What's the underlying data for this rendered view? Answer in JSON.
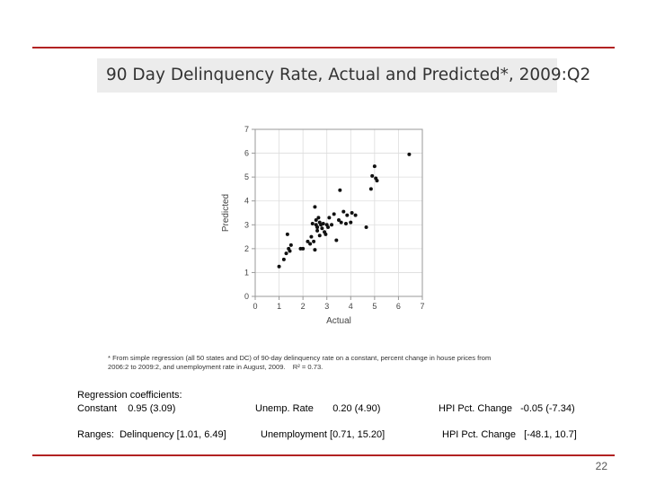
{
  "slide": {
    "title": "90 Day Delinquency Rate, Actual and Predicted*, 2009:Q2",
    "footnote_line1": "* From simple regression (all 50 states and DC) of 90-day delinquency rate on a constant, percent change in house prices from",
    "footnote_line2": "2006:2 to 2009:2, and unemployment rate in August, 2009.",
    "footnote_r2": "R² = 0.73.",
    "coef_heading": "Regression coefficients:",
    "coef_constant": "Constant    0.95 (3.09)",
    "coef_unemp": "Unemp. Rate       0.20 (4.90)",
    "coef_hpi": "HPI Pct. Change   -0.05 (-7.34)",
    "ranges_delinquency": "Ranges:  Delinquency [1.01, 6.49]",
    "ranges_unemp": "Unemployment [0.71, 15.20]",
    "ranges_hpi": "HPI Pct. Change   [-48.1, 10.7]",
    "page_number": "22"
  },
  "colors": {
    "rule": "#b22222",
    "title_bg": "#ececec",
    "grid": "#dddddd",
    "point": "#111111"
  },
  "chart_data": {
    "type": "scatter",
    "xlabel": "Actual",
    "ylabel": "Predicted",
    "xlim": [
      0,
      7
    ],
    "ylim": [
      0,
      7
    ],
    "xticks": [
      "0",
      "1",
      "2",
      "3",
      "4",
      "5",
      "6",
      "7"
    ],
    "yticks": [
      "0",
      "1",
      "2",
      "3",
      "4",
      "5",
      "6",
      "7"
    ],
    "grid": true,
    "points": [
      [
        1.0,
        1.25
      ],
      [
        1.2,
        1.55
      ],
      [
        1.3,
        1.8
      ],
      [
        1.4,
        2.0
      ],
      [
        1.35,
        2.6
      ],
      [
        1.5,
        2.15
      ],
      [
        1.45,
        1.9
      ],
      [
        1.9,
        2.0
      ],
      [
        2.0,
        2.0
      ],
      [
        2.2,
        2.3
      ],
      [
        2.3,
        2.2
      ],
      [
        2.35,
        2.5
      ],
      [
        2.4,
        3.05
      ],
      [
        2.5,
        1.95
      ],
      [
        2.5,
        3.75
      ],
      [
        2.55,
        3.2
      ],
      [
        2.55,
        3.0
      ],
      [
        2.6,
        2.9
      ],
      [
        2.65,
        3.3
      ],
      [
        2.6,
        2.75
      ],
      [
        2.7,
        2.55
      ],
      [
        2.7,
        3.1
      ],
      [
        2.75,
        3.0
      ],
      [
        2.8,
        2.85
      ],
      [
        2.85,
        3.05
      ],
      [
        2.9,
        2.7
      ],
      [
        2.95,
        2.6
      ],
      [
        3.0,
        3.0
      ],
      [
        3.05,
        2.9
      ],
      [
        3.1,
        3.3
      ],
      [
        3.2,
        3.0
      ],
      [
        3.3,
        3.45
      ],
      [
        3.4,
        2.35
      ],
      [
        3.5,
        3.2
      ],
      [
        3.55,
        4.45
      ],
      [
        3.6,
        3.1
      ],
      [
        3.7,
        3.55
      ],
      [
        3.8,
        3.05
      ],
      [
        3.85,
        3.4
      ],
      [
        4.0,
        3.1
      ],
      [
        4.05,
        3.5
      ],
      [
        4.2,
        3.4
      ],
      [
        4.65,
        2.9
      ],
      [
        4.85,
        4.5
      ],
      [
        4.9,
        5.05
      ],
      [
        5.0,
        5.45
      ],
      [
        5.05,
        4.95
      ],
      [
        5.1,
        4.85
      ],
      [
        6.45,
        5.95
      ],
      [
        2.6,
        2.9
      ],
      [
        2.45,
        2.3
      ]
    ]
  }
}
